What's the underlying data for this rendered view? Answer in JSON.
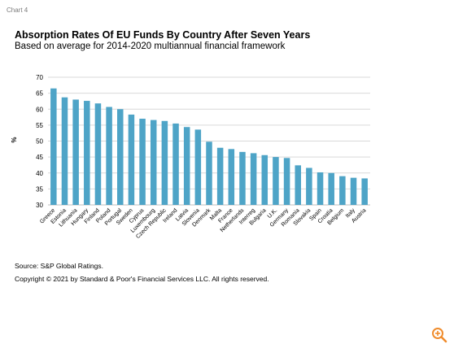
{
  "header": {
    "chart_label": "Chart 4",
    "title": "Absorption Rates Of EU Funds By Country After Seven Years",
    "subtitle": "Based on average for 2014-2020 multiannual financial framework"
  },
  "footer": {
    "source": "Source: S&P Global Ratings.",
    "copyright": "Copyright © 2021 by Standard & Poor's Financial Services LLC. All rights reserved."
  },
  "icons": {
    "zoom": "zoom-in-icon"
  },
  "colors": {
    "bar": "#4ea4c7",
    "grid": "#d9d9d9",
    "zoom": "#f08c2c"
  },
  "chart_data": {
    "type": "bar",
    "categories": [
      "Greece",
      "Estonia",
      "Lithuania",
      "Hungary",
      "Finland",
      "Poland",
      "Portugal",
      "Sweden",
      "Cyprus",
      "Luxembourg",
      "Czech Republic",
      "Ireland",
      "Latvia",
      "Slovenia",
      "Denmark",
      "Malta",
      "France",
      "Netherlands",
      "Interreg",
      "Bulgaria",
      "U.K.",
      "Germany",
      "Romania",
      "Slovakia",
      "Spain",
      "Croatia",
      "Belgium",
      "Italy",
      "Austria"
    ],
    "values": [
      66.5,
      63.7,
      63.0,
      62.6,
      61.8,
      60.7,
      60.0,
      58.3,
      57.0,
      56.6,
      56.3,
      55.5,
      54.4,
      53.6,
      49.8,
      47.9,
      47.5,
      46.6,
      46.2,
      45.6,
      45.0,
      44.7,
      42.4,
      41.6,
      40.2,
      40.0,
      39.0,
      38.5,
      38.3
    ],
    "xlabel": "",
    "ylabel": "%",
    "ylim": [
      30,
      70
    ],
    "yticks": [
      30,
      35,
      40,
      45,
      50,
      55,
      60,
      65,
      70
    ],
    "grid": true,
    "legend": "none"
  }
}
